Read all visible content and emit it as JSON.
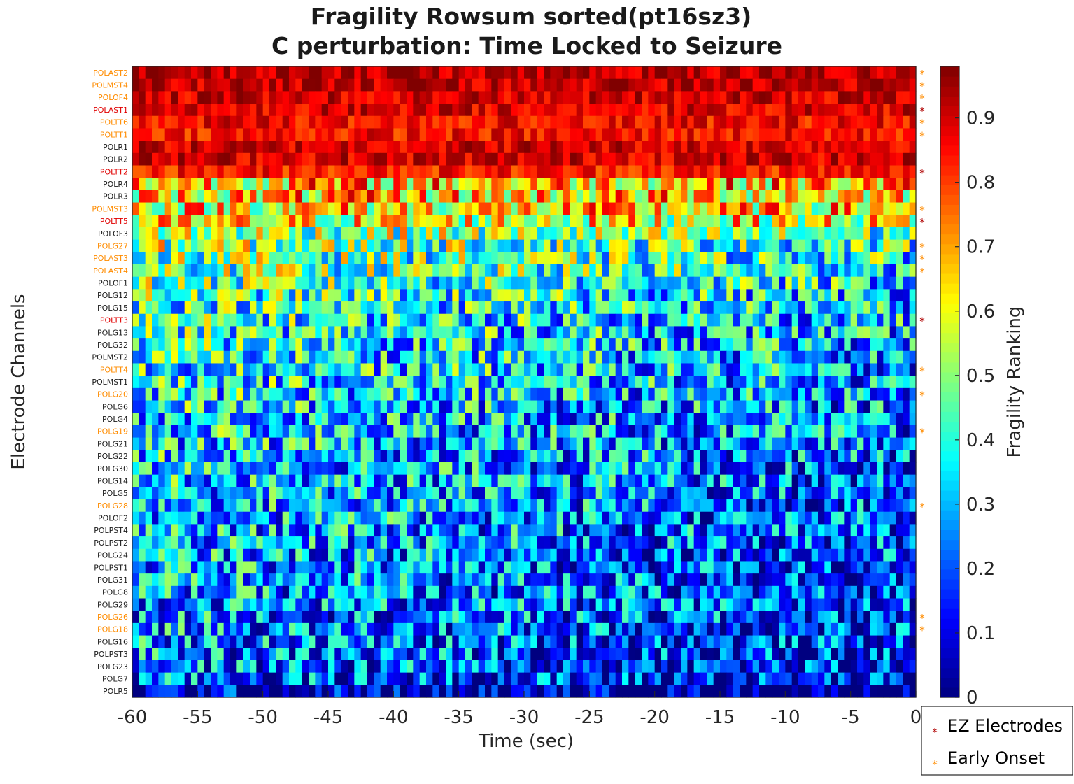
{
  "chart_data": {
    "type": "heatmap",
    "title_line1": "Fragility Rowsum sorted(pt16sz3)",
    "title_line2": "C perturbation:  Time Locked to Seizure",
    "xlabel": "Time (sec)",
    "ylabel": "Electrode Channels",
    "colorbar_label": "Fragility Ranking",
    "colormap": "jet",
    "xlim": [
      -60,
      0
    ],
    "clim": [
      0,
      0.98
    ],
    "x_ticks": [
      "-60",
      "-55",
      "-50",
      "-45",
      "-40",
      "-35",
      "-30",
      "-25",
      "-20",
      "-15",
      "-10",
      "-5",
      "0"
    ],
    "colorbar_ticks": [
      "0",
      "0.1",
      "0.2",
      "0.3",
      "0.4",
      "0.5",
      "0.6",
      "0.7",
      "0.8",
      "0.9"
    ],
    "channels": [
      {
        "name": "POLAST2",
        "type": "early",
        "mean": 0.93
      },
      {
        "name": "POLMST4",
        "type": "early",
        "mean": 0.92
      },
      {
        "name": "POLOF4",
        "type": "early",
        "mean": 0.9
      },
      {
        "name": "POLAST1",
        "type": "ez",
        "mean": 0.89
      },
      {
        "name": "POLTT6",
        "type": "early",
        "mean": 0.86
      },
      {
        "name": "POLTT1",
        "type": "early",
        "mean": 0.85
      },
      {
        "name": "POLR1",
        "type": "none",
        "mean": 0.9
      },
      {
        "name": "POLR2",
        "type": "none",
        "mean": 0.9
      },
      {
        "name": "POLTT2",
        "type": "ez",
        "mean": 0.84
      },
      {
        "name": "POLR4",
        "type": "none",
        "mean": 0.68
      },
      {
        "name": "POLR3",
        "type": "none",
        "mean": 0.66
      },
      {
        "name": "POLMST3",
        "type": "early",
        "mean": 0.64
      },
      {
        "name": "POLTT5",
        "type": "ez",
        "mean": 0.6
      },
      {
        "name": "POLOF3",
        "type": "none",
        "mean": 0.55
      },
      {
        "name": "POLG27",
        "type": "early",
        "mean": 0.52
      },
      {
        "name": "POLAST3",
        "type": "early",
        "mean": 0.5
      },
      {
        "name": "POLAST4",
        "type": "early",
        "mean": 0.49
      },
      {
        "name": "POLOF1",
        "type": "none",
        "mean": 0.46
      },
      {
        "name": "POLG12",
        "type": "none",
        "mean": 0.44
      },
      {
        "name": "POLG15",
        "type": "none",
        "mean": 0.43
      },
      {
        "name": "POLTT3",
        "type": "ez",
        "mean": 0.42
      },
      {
        "name": "POLG13",
        "type": "none",
        "mean": 0.41
      },
      {
        "name": "POLG32",
        "type": "none",
        "mean": 0.4
      },
      {
        "name": "POLMST2",
        "type": "none",
        "mean": 0.39
      },
      {
        "name": "POLTT4",
        "type": "early",
        "mean": 0.39
      },
      {
        "name": "POLMST1",
        "type": "none",
        "mean": 0.38
      },
      {
        "name": "POLG20",
        "type": "early",
        "mean": 0.37
      },
      {
        "name": "POLG6",
        "type": "none",
        "mean": 0.36
      },
      {
        "name": "POLG4",
        "type": "none",
        "mean": 0.35
      },
      {
        "name": "POLG19",
        "type": "early",
        "mean": 0.35
      },
      {
        "name": "POLG21",
        "type": "none",
        "mean": 0.34
      },
      {
        "name": "POLG22",
        "type": "none",
        "mean": 0.34
      },
      {
        "name": "POLG30",
        "type": "none",
        "mean": 0.33
      },
      {
        "name": "POLG14",
        "type": "none",
        "mean": 0.33
      },
      {
        "name": "POLG5",
        "type": "none",
        "mean": 0.32
      },
      {
        "name": "POLG28",
        "type": "early",
        "mean": 0.32
      },
      {
        "name": "POLOF2",
        "type": "none",
        "mean": 0.31
      },
      {
        "name": "POLPST4",
        "type": "none",
        "mean": 0.31
      },
      {
        "name": "POLPST2",
        "type": "none",
        "mean": 0.3
      },
      {
        "name": "POLG24",
        "type": "none",
        "mean": 0.3
      },
      {
        "name": "POLPST1",
        "type": "none",
        "mean": 0.29
      },
      {
        "name": "POLG31",
        "type": "none",
        "mean": 0.29
      },
      {
        "name": "POLG8",
        "type": "none",
        "mean": 0.28
      },
      {
        "name": "POLG29",
        "type": "none",
        "mean": 0.28
      },
      {
        "name": "POLG26",
        "type": "early",
        "mean": 0.27
      },
      {
        "name": "POLG18",
        "type": "early",
        "mean": 0.27
      },
      {
        "name": "POLG16",
        "type": "none",
        "mean": 0.26
      },
      {
        "name": "POLPST3",
        "type": "none",
        "mean": 0.25
      },
      {
        "name": "POLG23",
        "type": "none",
        "mean": 0.24
      },
      {
        "name": "POLG7",
        "type": "none",
        "mean": 0.22
      },
      {
        "name": "POLR5",
        "type": "none",
        "mean": 0.06
      }
    ],
    "label_colors": {
      "ez": "#e00000",
      "early": "#ff8c00",
      "none": "#1a1a1a"
    },
    "marker_colors": {
      "ez": "#b00000",
      "early": "#ff8c00"
    },
    "legend": [
      {
        "label": "EZ Electrodes",
        "type": "ez"
      },
      {
        "label": "Early Onset",
        "type": "early"
      }
    ]
  }
}
